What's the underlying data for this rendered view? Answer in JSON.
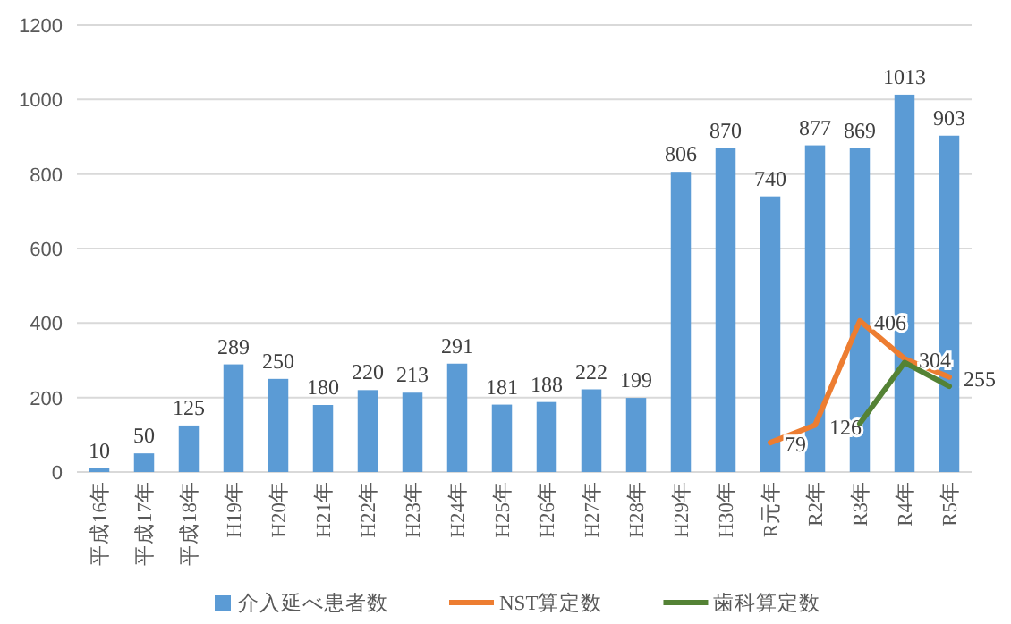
{
  "chart_data": {
    "type": "bar",
    "categories": [
      "平成16年",
      "平成17年",
      "平成18年",
      "H19年",
      "H20年",
      "H21年",
      "H22年",
      "H23年",
      "H24年",
      "H25年",
      "H26年",
      "H27年",
      "H28年",
      "H29年",
      "H30年",
      "R元年",
      "R2年",
      "R3年",
      "R4年",
      "R5年"
    ],
    "series": [
      {
        "name": "介入延べ患者数",
        "color": "#5b9bd5",
        "values": [
          10,
          50,
          125,
          289,
          250,
          180,
          220,
          213,
          291,
          181,
          188,
          222,
          199,
          806,
          870,
          740,
          877,
          869,
          1013,
          903
        ],
        "value_labels": [
          "10",
          "50",
          "125",
          "289",
          "250",
          "180",
          "220",
          "213",
          "291",
          "181",
          "188",
          "222",
          "199",
          "806",
          "870",
          "740",
          "877",
          "869",
          "1013",
          "903"
        ]
      },
      {
        "name": "NST算定数",
        "type": "line",
        "color": "#ed7d31",
        "values": [
          null,
          null,
          null,
          null,
          null,
          null,
          null,
          null,
          null,
          null,
          null,
          null,
          null,
          null,
          null,
          79,
          126,
          406,
          304,
          255
        ],
        "value_labels": [
          null,
          null,
          null,
          null,
          null,
          null,
          null,
          null,
          null,
          null,
          null,
          null,
          null,
          null,
          null,
          "79",
          "126",
          "406",
          "304",
          "255"
        ]
      },
      {
        "name": "歯科算定数",
        "type": "line",
        "color": "#548235",
        "values": [
          null,
          null,
          null,
          null,
          null,
          null,
          null,
          null,
          null,
          null,
          null,
          null,
          null,
          null,
          null,
          null,
          null,
          130,
          294,
          230
        ]
      }
    ],
    "ylim": [
      0,
      1200
    ],
    "yticks": [
      0,
      200,
      400,
      600,
      800,
      1000,
      1200
    ],
    "grid": "y",
    "legend": "bottom"
  }
}
